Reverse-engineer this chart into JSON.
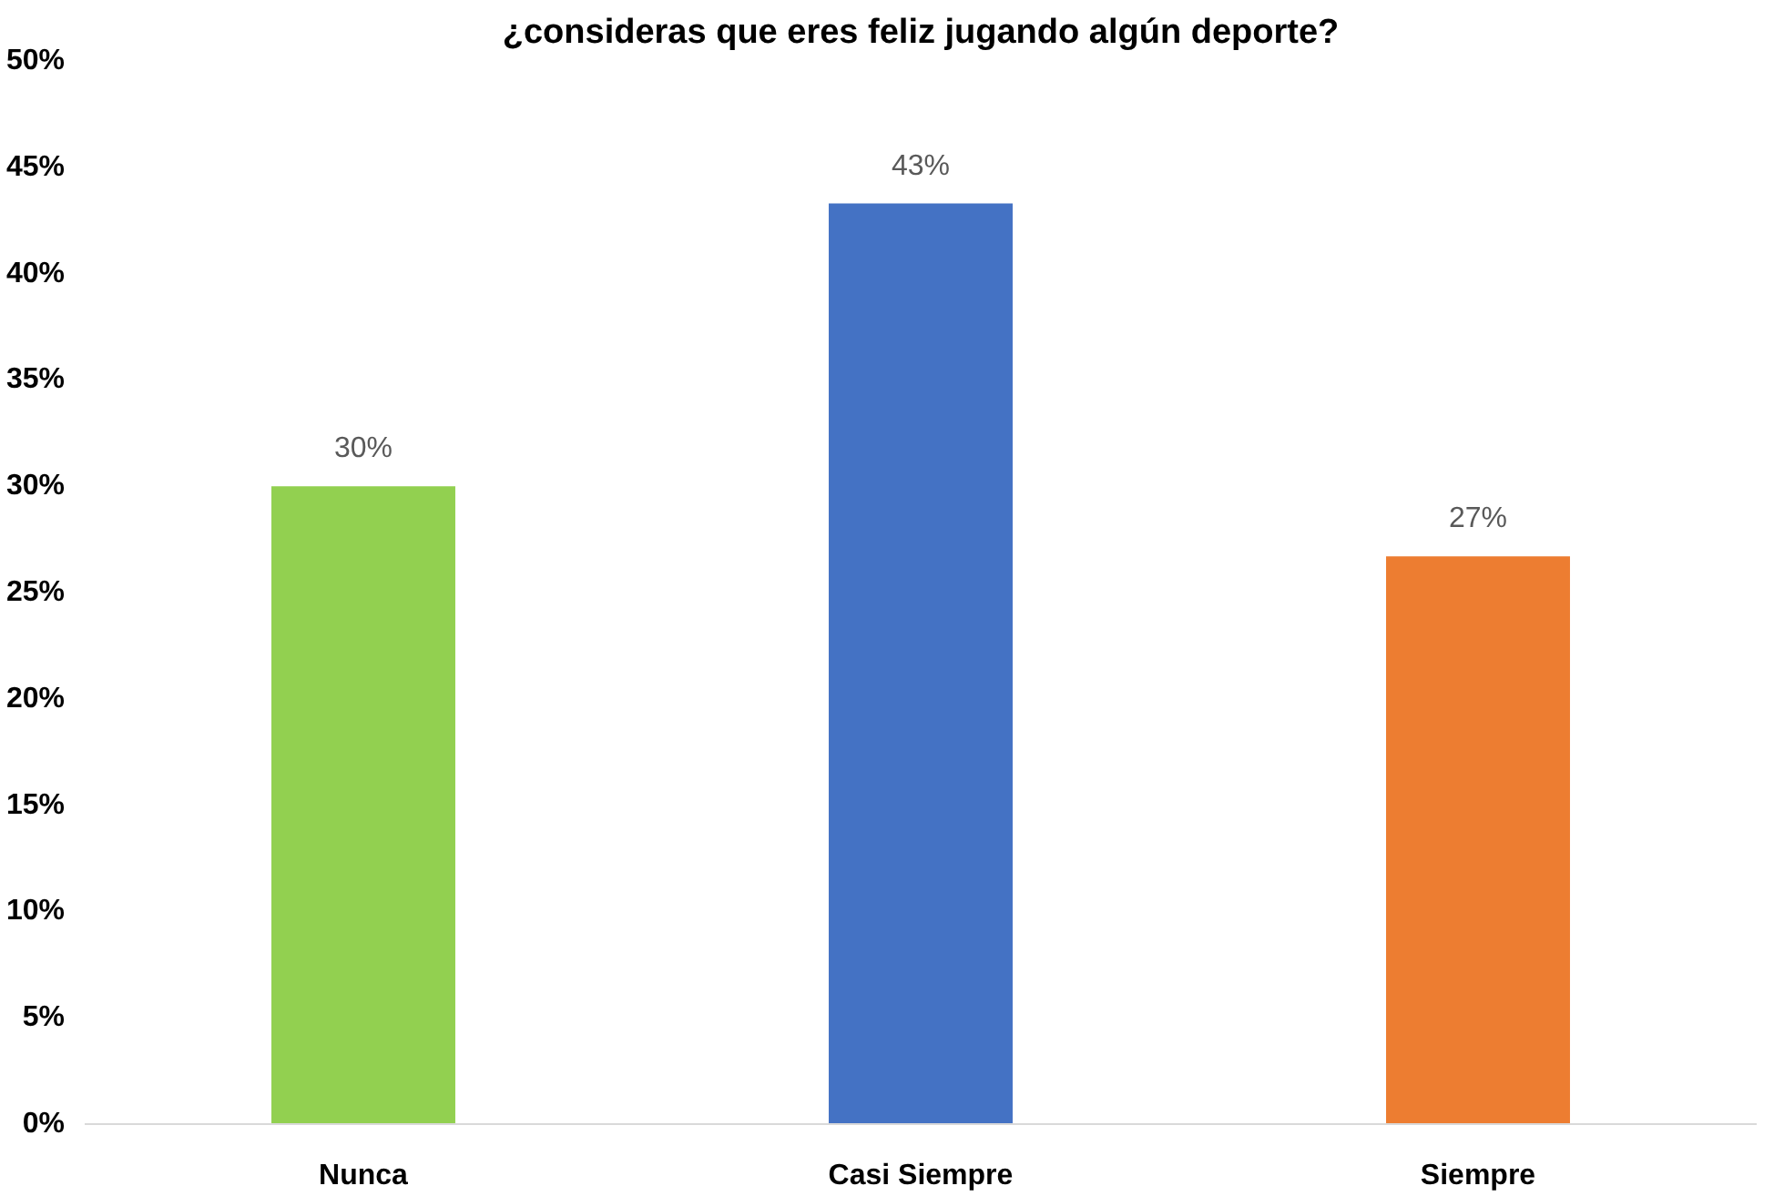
{
  "chart_data": {
    "type": "bar",
    "title": "¿consideras que eres feliz jugando algún deporte?",
    "categories": [
      "Nunca",
      "Casi Siempre",
      "Siempre"
    ],
    "values": [
      30,
      43.3,
      26.7
    ],
    "colors": [
      "#92d050",
      "#4472c4",
      "#ed7d31"
    ],
    "value_labels": [
      "30%",
      "43%",
      "27%"
    ],
    "ylim": [
      0,
      50
    ],
    "yticks": [
      {
        "value": 0,
        "label": "0%"
      },
      {
        "value": 5,
        "label": "5%"
      },
      {
        "value": 10,
        "label": "10%"
      },
      {
        "value": 15,
        "label": "15%"
      },
      {
        "value": 20,
        "label": "20%"
      },
      {
        "value": 25,
        "label": "25%"
      },
      {
        "value": 30,
        "label": "30%"
      },
      {
        "value": 35,
        "label": "35%"
      },
      {
        "value": 40,
        "label": "40%"
      },
      {
        "value": 45,
        "label": "45%"
      },
      {
        "value": 50,
        "label": "50%"
      }
    ],
    "grid": false
  }
}
